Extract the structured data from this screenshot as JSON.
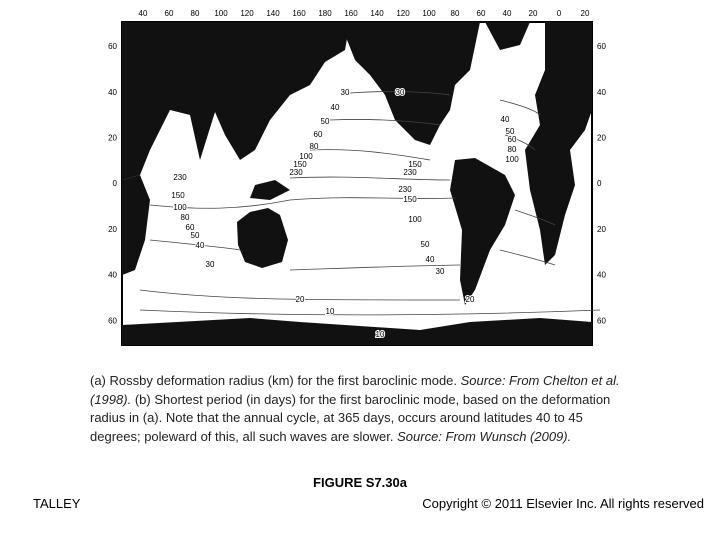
{
  "map": {
    "top_labels": [
      "40",
      "60",
      "80",
      "100",
      "120",
      "140",
      "160",
      "180",
      "160",
      "140",
      "120",
      "100",
      "80",
      "60",
      "40",
      "20",
      "0",
      "20"
    ],
    "left_labels": [
      "60",
      "40",
      "20",
      "0",
      "20",
      "40",
      "60"
    ],
    "right_labels": [
      "60",
      "40",
      "20",
      "0",
      "20",
      "40",
      "60"
    ],
    "contour_labels": [
      "30",
      "40",
      "50",
      "60",
      "80",
      "100",
      "150",
      "230",
      "230",
      "150",
      "100",
      "80",
      "60",
      "50",
      "40",
      "30",
      "20",
      "10",
      "30",
      "40",
      "50",
      "60",
      "80",
      "100",
      "150",
      "230",
      "230",
      "150",
      "100",
      "50",
      "40",
      "30",
      "20",
      "10"
    ]
  },
  "caption": {
    "part1": "(a) Rossby deformation radius (km) for the first baroclinic mode. ",
    "source1": "Source: From Chelton et al. (1998).",
    "part2": " (b) Shortest period (in days) for the first baroclinic mode, based on the deformation radius in (a). Note that the annual cycle, at 365 days, occurs around latitudes 40 to 45 degrees; poleward of this, all such waves are slower. ",
    "source2": "Source: From Wunsch (2009)."
  },
  "figure_label": "FIGURE S7.30a",
  "footer": {
    "author": "TALLEY",
    "copyright": "Copyright © 2011 Elsevier Inc. All rights reserved"
  }
}
